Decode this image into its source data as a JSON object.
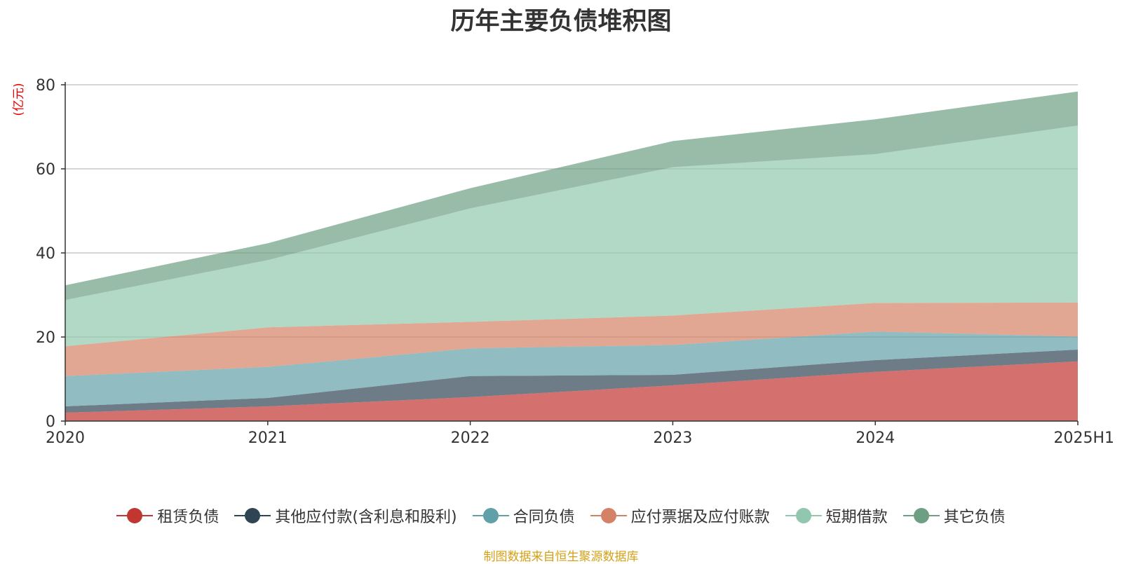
{
  "chart_data": {
    "type": "area",
    "stacked": true,
    "title": "历年主要负债堆积图",
    "ylabel": "(亿元)",
    "xlabel": "",
    "categories": [
      "2020",
      "2021",
      "2022",
      "2023",
      "2024",
      "2025H1"
    ],
    "ylim": [
      0,
      80
    ],
    "yticks": [
      0,
      20,
      40,
      60,
      80
    ],
    "grid": true,
    "legend_position": "bottom",
    "series": [
      {
        "name": "租赁负债",
        "color": "#c23531",
        "values": [
          2,
          3.5,
          5.7,
          8.5,
          11.7,
          14.2
        ]
      },
      {
        "name": "其他应付款(含利息和股利)",
        "color": "#2f4554",
        "values": [
          1.5,
          2,
          5,
          2.5,
          2.8,
          2.8
        ]
      },
      {
        "name": "合同负债",
        "color": "#61a0a8",
        "values": [
          7.2,
          7.4,
          6.6,
          7.1,
          6.8,
          3.1
        ]
      },
      {
        "name": "应付票据及应付账款",
        "color": "#d48265",
        "values": [
          7.1,
          9.4,
          6.3,
          7,
          6.8,
          8.1
        ]
      },
      {
        "name": "短期借款",
        "color": "#91c7ae",
        "values": [
          11,
          16,
          27,
          35.3,
          35.4,
          42.1
        ]
      },
      {
        "name": "其它负债",
        "color": "#6e9f83",
        "values": [
          3.5,
          4,
          4.8,
          6.2,
          8.3,
          8.1
        ]
      }
    ]
  },
  "source_note": "制图数据来自恒生聚源数据库"
}
